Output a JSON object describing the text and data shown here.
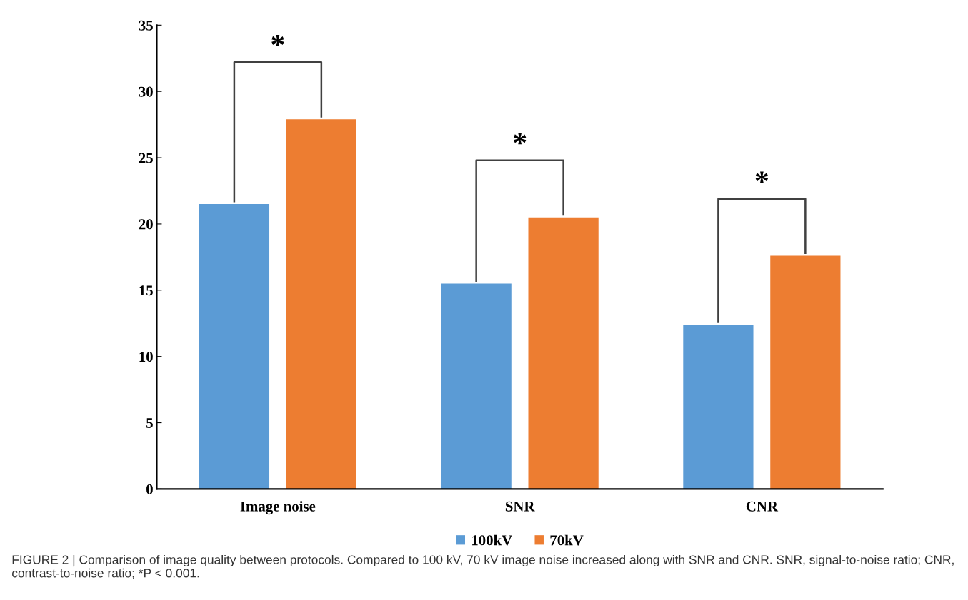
{
  "chart_data": {
    "type": "bar",
    "categories": [
      "Image noise",
      "SNR",
      "CNR"
    ],
    "series": [
      {
        "name": "100kV",
        "color": "#5b9bd5",
        "values": [
          21.5,
          15.5,
          12.4
        ]
      },
      {
        "name": "70kV",
        "color": "#ed7d31",
        "values": [
          27.9,
          20.5,
          17.6
        ]
      }
    ],
    "ylim": [
      0,
      35
    ],
    "yticks": [
      0,
      5,
      10,
      15,
      20,
      25,
      30,
      35
    ],
    "legend": "bottom",
    "annotations": [
      "*",
      "*",
      "*",
      "FIGURE 2 | Comparison of image quality between protocols. Compared to 100 kV, 70 kV image noise increased along with SNR and CNR. SNR, signal-to-noise ratio; CNR, contrast-to-noise ratio; *P < 0.001."
    ]
  }
}
